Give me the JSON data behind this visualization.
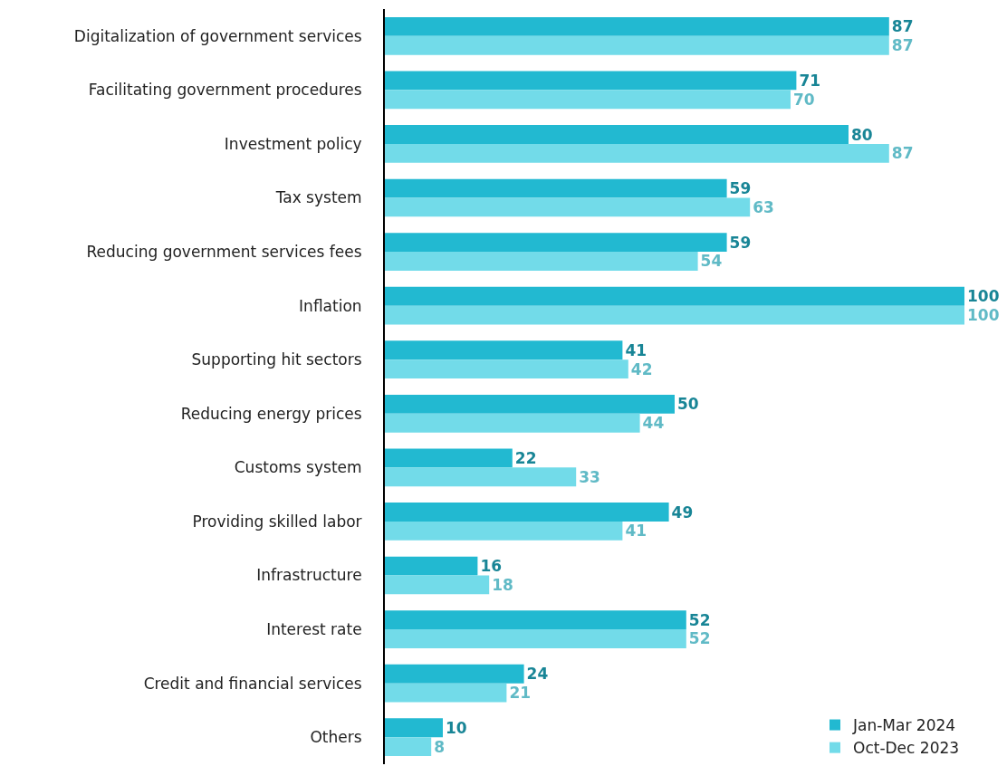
{
  "chart_data": {
    "type": "bar",
    "orientation": "horizontal",
    "data_labels": true,
    "legend": "bottom right",
    "categories": [
      "Digitalization of government services",
      "Facilitating government procedures",
      "Investment policy",
      "Tax system",
      "Reducing government services fees",
      "Inflation",
      "Supporting hit sectors",
      "Reducing energy prices",
      "Customs system",
      "Providing skilled labor",
      "Infrastructure",
      "Interest rate",
      "Credit and financial services",
      "Others"
    ],
    "series": [
      {
        "name": "Jan-Mar 2024",
        "color": "#22b9d1",
        "values": [
          87,
          71,
          80,
          59,
          59,
          100,
          41,
          50,
          22,
          49,
          16,
          52,
          24,
          10
        ]
      },
      {
        "name": "Oct-Dec 2023",
        "color": "#72dbe9",
        "values": [
          87,
          70,
          87,
          63,
          54,
          100,
          42,
          44,
          33,
          41,
          18,
          52,
          21,
          8
        ]
      }
    ]
  }
}
